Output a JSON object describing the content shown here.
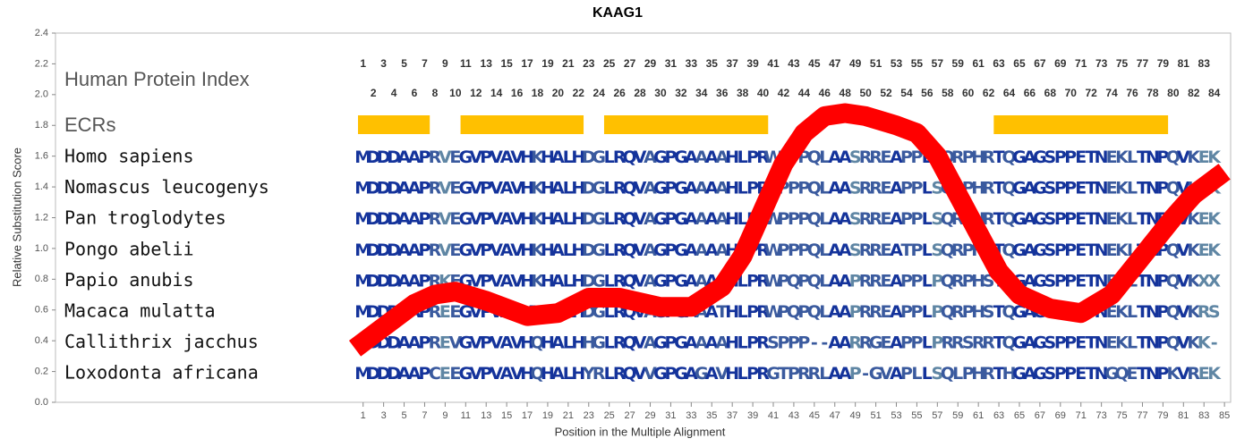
{
  "chart_data": {
    "type": "line",
    "title": "KAAG1",
    "x_label": "Position in the Multiple Alignment",
    "y_label": "Relative Substitution Score",
    "xlim": [
      -29,
      85.6
    ],
    "xticks": [
      1,
      3,
      5,
      7,
      9,
      11,
      13,
      15,
      17,
      19,
      21,
      23,
      25,
      27,
      29,
      31,
      33,
      35,
      37,
      39,
      41,
      43,
      45,
      47,
      49,
      51,
      53,
      55,
      57,
      59,
      61,
      63,
      65,
      67,
      69,
      71,
      73,
      75,
      77,
      79,
      81,
      83,
      85
    ],
    "ylim": [
      0,
      2.4
    ],
    "yticks": [
      {
        "value": 0,
        "label": "0.0"
      },
      0.2,
      0.4,
      0.6,
      0.8,
      {
        "value": 1,
        "label": "1.0"
      },
      1.2,
      1.4,
      1.6,
      1.8,
      {
        "value": 2,
        "label": "2.0"
      },
      2.2,
      2.4
    ],
    "x": [
      0.2,
      3,
      6,
      8,
      10,
      13,
      17,
      20,
      23,
      26,
      30,
      33,
      36,
      38,
      40,
      42,
      44,
      46,
      48,
      50,
      53,
      55,
      57,
      59,
      61,
      63,
      65,
      68,
      71,
      74,
      77,
      80,
      82,
      85
    ],
    "series": [
      {
        "color": "#ff0000",
        "values": [
          0.35,
          0.49,
          0.64,
          0.7,
          0.72,
          0.66,
          0.56,
          0.58,
          0.68,
          0.68,
          0.62,
          0.62,
          0.75,
          0.95,
          1.25,
          1.55,
          1.75,
          1.86,
          1.88,
          1.86,
          1.8,
          1.75,
          1.6,
          1.35,
          1.1,
          0.85,
          0.7,
          0.61,
          0.58,
          0.7,
          0.95,
          1.2,
          1.35,
          1.5
        ]
      }
    ]
  },
  "alignment": {
    "index_label": "Human Protein Index",
    "index_top": [
      1,
      3,
      5,
      7,
      9,
      11,
      13,
      15,
      17,
      19,
      21,
      23,
      25,
      27,
      29,
      31,
      33,
      35,
      37,
      39,
      41,
      43,
      45,
      47,
      49,
      51,
      53,
      55,
      57,
      59,
      61,
      63,
      65,
      67,
      69,
      71,
      73,
      75,
      77,
      79,
      81,
      83
    ],
    "index_bottom": [
      2,
      4,
      6,
      8,
      10,
      12,
      14,
      16,
      18,
      20,
      22,
      24,
      26,
      28,
      30,
      32,
      34,
      36,
      38,
      40,
      42,
      44,
      46,
      48,
      50,
      52,
      54,
      56,
      58,
      60,
      62,
      64,
      66,
      68,
      70,
      72,
      74,
      76,
      78,
      80,
      82,
      84
    ],
    "ecr_label": "ECRs",
    "ecr_color": "#ffc000",
    "ecrs": [
      [
        1,
        7
      ],
      [
        11,
        22
      ],
      [
        25,
        40
      ],
      [
        63,
        79
      ]
    ],
    "conservation_colors": [
      "#14339b",
      "#3a5a9e",
      "#5f86a4",
      "#8ab8a4"
    ],
    "rows": [
      {
        "species": "Homo sapiens",
        "sequence": "MDDDAAPRVEGVPVAVHKHALHDGLRQVAGPGAAAAHLPRWPPPQLAASRREAPPLSQRPHRTQGAGSPPETNEKLTNPQVKEK"
      },
      {
        "species": "Nomascus leucogenys",
        "sequence": "MDDDAAPRVEGVPVAVHKHALHDGLRQVAGPGAAAAHLPRWPPPQLAASRREAPPLSQRPHRTQGAGSPPETNEKLTNPQVKEK"
      },
      {
        "species": "Pan troglodytes",
        "sequence": "MDDDAAPRVEGVPVAVHKHALHDGLRQVAGPGAAAAHLPRWPPPQLAASRREAPPLSQRPHRTQGAGSPPETNEKLTNPQVKEK"
      },
      {
        "species": "Pongo abelii",
        "sequence": "MDDDAAPRVEGVPVAVHKHALHDGLRQVAGPGAAAAHLPRWPPPQLAASRREATPLSQRPHRTQGAGSPPETNEKLTNPQVKEK"
      },
      {
        "species": "Papio anubis",
        "sequence": "MDDDAAPRKEGVPVAVHKHALHDGLRQVAGPGAAAAHLPRWPQPQLAAPRREAPPLPQRPHSTQGAGSPPETNEKLTNPQVKXX"
      },
      {
        "species": "Macaca mulatta",
        "sequence": "MDDDAAPREEGVPVAVHKHALHDGLRQVAGPGAAATHLPRWPQPQLAAPRREAPPLPQRPHSTQGAGSPPETNEKLTNPQVKRS"
      },
      {
        "species": "Callithrix jacchus",
        "sequence": "MDDDAAPREVGVPVAVHQHALHHGLRQVAGPGAAAAHLPRSPPP--AARRGEAPPLPRRSRRTQGAGSPPETNEKLTNPQVKK-"
      },
      {
        "species": "Loxodonta africana",
        "sequence": "MDDDAAPCEEGVPVAVHQHALHYRLRQVVGPGAGAVHLPRGTPRRLAAP-GVAPLLSQLPHRTHGAGSPPETNGQETNPKVREK"
      }
    ]
  }
}
